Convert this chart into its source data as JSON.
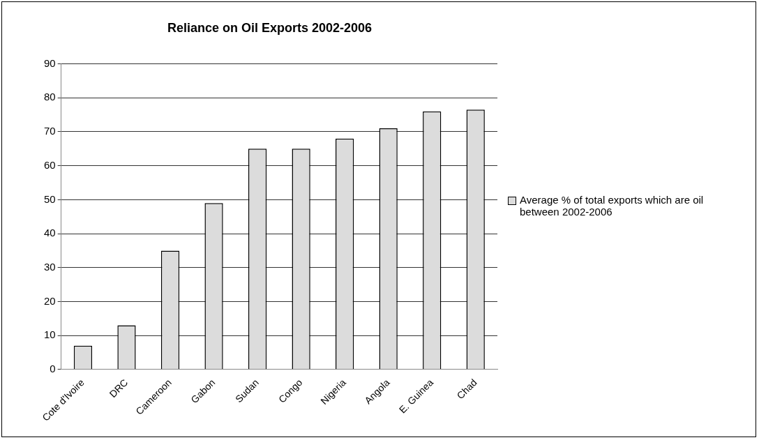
{
  "chart_data": {
    "type": "bar",
    "title": "Reliance on Oil Exports 2002-2006",
    "categories": [
      "Cote d'Ivoire",
      "DRC",
      "Cameroon",
      "Gabon",
      "Sudan",
      "Congo",
      "Nigeria",
      "Angola",
      "E. Guinea",
      "Chad"
    ],
    "series": [
      {
        "name": "Average % of total exports which are oil between 2002-2006",
        "color": "#dcdcdc",
        "values": [
          7,
          13,
          35,
          49,
          65,
          65,
          68,
          71,
          76,
          76.5
        ]
      }
    ],
    "ylim": [
      0,
      90
    ],
    "yticks": [
      0,
      10,
      20,
      30,
      40,
      50,
      60,
      70,
      80,
      90
    ],
    "grid": "y",
    "legend": "right"
  }
}
